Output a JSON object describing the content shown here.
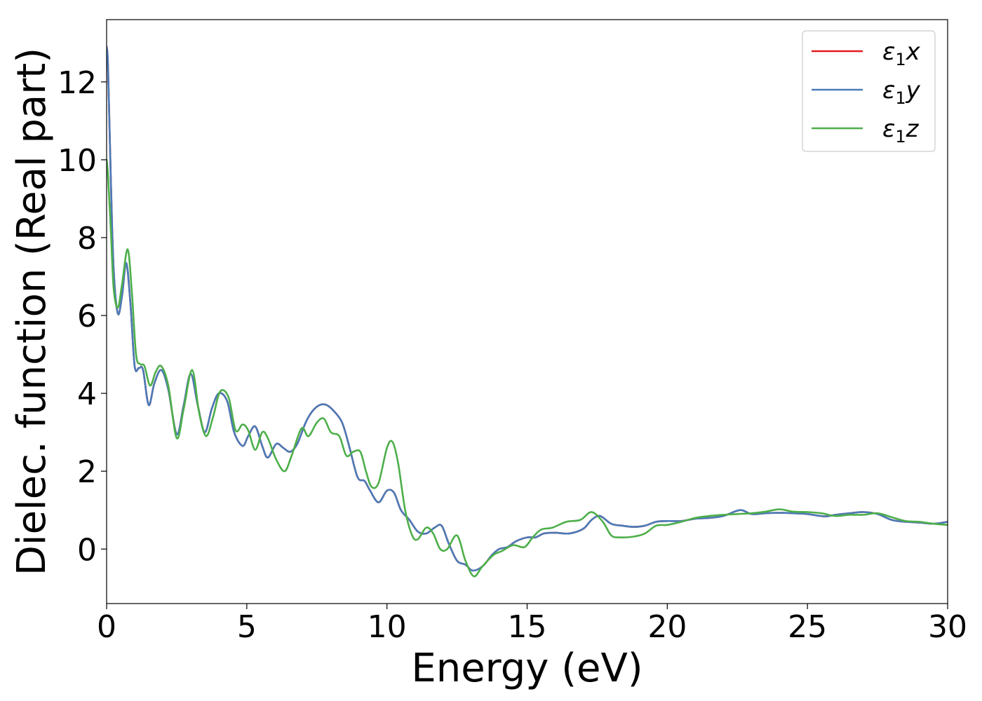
{
  "chart_data": {
    "type": "line",
    "xlabel": "Energy (eV)",
    "ylabel": "Dielec. function (Real part)",
    "xlim": [
      0,
      30
    ],
    "ylim": [
      -1.4,
      13.6
    ],
    "xticks": [
      0,
      5,
      10,
      15,
      20,
      25,
      30
    ],
    "yticks": [
      0,
      2,
      4,
      6,
      8,
      10,
      12
    ],
    "grid": false,
    "legend": "top-right",
    "series": [
      {
        "name": "ε1x",
        "name_base": "ε",
        "name_sub": "1",
        "name_var": "x",
        "color": "#e41a1c",
        "x": [
          0,
          0.05,
          0.15,
          0.25,
          0.4,
          0.55,
          0.7,
          0.85,
          1.0,
          1.15,
          1.3,
          1.5,
          1.7,
          1.95,
          2.2,
          2.5,
          2.75,
          3.0,
          3.25,
          3.5,
          3.75,
          4.0,
          4.3,
          4.55,
          4.85,
          5.05,
          5.3,
          5.55,
          5.75,
          6.05,
          6.3,
          6.55,
          6.8,
          7.1,
          7.35,
          7.6,
          7.85,
          8.1,
          8.4,
          8.65,
          8.95,
          9.2,
          9.4,
          9.7,
          10.0,
          10.25,
          10.5,
          10.8,
          11.1,
          11.4,
          11.7,
          11.95,
          12.2,
          12.5,
          12.8,
          13.05,
          13.4,
          13.75,
          14.0,
          14.3,
          14.6,
          15.0,
          15.3,
          15.6,
          16.0,
          16.5,
          17.0,
          17.3,
          17.6,
          18.0,
          18.4,
          18.8,
          19.2,
          19.6,
          20.0,
          20.5,
          21.0,
          21.5,
          22.0,
          22.6,
          23.0,
          23.5,
          24.0,
          24.5,
          25.0,
          25.6,
          26.0,
          26.5,
          27.0,
          27.5,
          28.0,
          28.5,
          29.0,
          29.5,
          30.0
        ],
        "y": [
          12.9,
          12.4,
          9.5,
          7.2,
          6.05,
          6.5,
          7.35,
          6.3,
          4.7,
          4.65,
          4.6,
          3.7,
          4.25,
          4.6,
          4.1,
          2.95,
          3.7,
          4.5,
          3.7,
          3.0,
          3.6,
          4.0,
          3.8,
          3.0,
          2.65,
          2.9,
          3.15,
          2.65,
          2.35,
          2.7,
          2.6,
          2.5,
          2.7,
          3.25,
          3.55,
          3.7,
          3.7,
          3.55,
          3.25,
          2.65,
          1.85,
          1.75,
          1.5,
          1.2,
          1.5,
          1.45,
          1.0,
          0.75,
          0.45,
          0.4,
          0.55,
          0.6,
          0.15,
          -0.3,
          -0.4,
          -0.55,
          -0.45,
          -0.15,
          0.0,
          0.05,
          0.2,
          0.3,
          0.3,
          0.4,
          0.42,
          0.4,
          0.52,
          0.75,
          0.85,
          0.65,
          0.6,
          0.57,
          0.6,
          0.7,
          0.72,
          0.72,
          0.78,
          0.8,
          0.85,
          1.0,
          0.9,
          0.92,
          0.93,
          0.92,
          0.9,
          0.84,
          0.88,
          0.92,
          0.95,
          0.9,
          0.75,
          0.7,
          0.68,
          0.65,
          0.7
        ]
      },
      {
        "name": "ε1y",
        "name_base": "ε",
        "name_sub": "1",
        "name_var": "y",
        "color": "#4a7bb8",
        "x": [
          0,
          0.05,
          0.15,
          0.25,
          0.4,
          0.55,
          0.7,
          0.85,
          1.0,
          1.15,
          1.3,
          1.5,
          1.7,
          1.95,
          2.2,
          2.5,
          2.75,
          3.0,
          3.25,
          3.5,
          3.75,
          4.0,
          4.3,
          4.55,
          4.85,
          5.05,
          5.3,
          5.55,
          5.75,
          6.05,
          6.3,
          6.55,
          6.8,
          7.1,
          7.35,
          7.6,
          7.85,
          8.1,
          8.4,
          8.65,
          8.95,
          9.2,
          9.4,
          9.7,
          10.0,
          10.25,
          10.5,
          10.8,
          11.1,
          11.4,
          11.7,
          11.95,
          12.2,
          12.5,
          12.8,
          13.05,
          13.4,
          13.75,
          14.0,
          14.3,
          14.6,
          15.0,
          15.3,
          15.6,
          16.0,
          16.5,
          17.0,
          17.3,
          17.6,
          18.0,
          18.4,
          18.8,
          19.2,
          19.6,
          20.0,
          20.5,
          21.0,
          21.5,
          22.0,
          22.6,
          23.0,
          23.5,
          24.0,
          24.5,
          25.0,
          25.6,
          26.0,
          26.5,
          27.0,
          27.5,
          28.0,
          28.5,
          29.0,
          29.5,
          30.0
        ],
        "y": [
          12.9,
          12.4,
          9.5,
          7.2,
          6.05,
          6.5,
          7.35,
          6.3,
          4.7,
          4.65,
          4.6,
          3.7,
          4.25,
          4.6,
          4.1,
          2.95,
          3.7,
          4.5,
          3.7,
          3.0,
          3.6,
          4.0,
          3.8,
          3.0,
          2.65,
          2.9,
          3.15,
          2.65,
          2.35,
          2.7,
          2.6,
          2.5,
          2.7,
          3.25,
          3.55,
          3.7,
          3.7,
          3.55,
          3.25,
          2.65,
          1.85,
          1.75,
          1.5,
          1.2,
          1.5,
          1.45,
          1.0,
          0.75,
          0.45,
          0.4,
          0.55,
          0.6,
          0.15,
          -0.3,
          -0.4,
          -0.55,
          -0.45,
          -0.15,
          0.0,
          0.05,
          0.2,
          0.3,
          0.3,
          0.4,
          0.42,
          0.4,
          0.52,
          0.75,
          0.85,
          0.65,
          0.6,
          0.57,
          0.6,
          0.7,
          0.72,
          0.72,
          0.78,
          0.8,
          0.85,
          1.0,
          0.9,
          0.92,
          0.93,
          0.92,
          0.9,
          0.84,
          0.88,
          0.92,
          0.95,
          0.9,
          0.75,
          0.7,
          0.68,
          0.65,
          0.7
        ]
      },
      {
        "name": "ε1z",
        "name_base": "ε",
        "name_sub": "1",
        "name_var": "z",
        "color": "#4daf4a",
        "x": [
          0,
          0.05,
          0.15,
          0.25,
          0.4,
          0.55,
          0.75,
          0.9,
          1.05,
          1.2,
          1.35,
          1.55,
          1.75,
          1.95,
          2.2,
          2.5,
          2.75,
          3.05,
          3.3,
          3.55,
          3.8,
          4.05,
          4.35,
          4.6,
          4.85,
          5.05,
          5.3,
          5.55,
          5.75,
          6.05,
          6.35,
          6.6,
          6.95,
          7.2,
          7.5,
          7.75,
          8.0,
          8.3,
          8.55,
          8.8,
          9.05,
          9.25,
          9.45,
          9.7,
          10.0,
          10.2,
          10.4,
          10.65,
          10.9,
          11.1,
          11.4,
          11.65,
          11.9,
          12.15,
          12.5,
          12.8,
          13.1,
          13.4,
          13.8,
          14.1,
          14.5,
          14.9,
          15.2,
          15.5,
          15.9,
          16.4,
          16.9,
          17.3,
          17.7,
          18.0,
          18.3,
          18.8,
          19.2,
          19.6,
          20.0,
          20.5,
          21.0,
          21.5,
          22.0,
          22.5,
          23.0,
          23.5,
          24.0,
          24.5,
          25.0,
          25.5,
          26.0,
          26.5,
          27.0,
          27.5,
          28.0,
          28.5,
          29.0,
          29.5,
          30.0
        ],
        "y": [
          10.0,
          9.6,
          8.2,
          6.7,
          6.2,
          6.8,
          7.7,
          6.6,
          5.0,
          4.75,
          4.7,
          4.2,
          4.55,
          4.7,
          4.2,
          2.85,
          3.6,
          4.6,
          3.5,
          2.9,
          3.4,
          4.05,
          3.9,
          3.05,
          3.2,
          3.05,
          2.55,
          3.0,
          2.85,
          2.3,
          2.0,
          2.4,
          3.1,
          2.9,
          3.25,
          3.35,
          3.0,
          2.9,
          2.4,
          2.5,
          2.5,
          2.0,
          1.6,
          1.7,
          2.6,
          2.75,
          2.2,
          1.0,
          0.35,
          0.25,
          0.55,
          0.4,
          0.0,
          0.0,
          0.35,
          -0.3,
          -0.7,
          -0.45,
          -0.15,
          -0.05,
          0.1,
          0.05,
          0.3,
          0.5,
          0.55,
          0.7,
          0.75,
          0.95,
          0.7,
          0.35,
          0.3,
          0.32,
          0.4,
          0.6,
          0.62,
          0.7,
          0.8,
          0.85,
          0.88,
          0.9,
          0.92,
          0.96,
          1.02,
          0.96,
          0.95,
          0.92,
          0.85,
          0.88,
          0.88,
          0.92,
          0.82,
          0.72,
          0.7,
          0.65,
          0.62
        ]
      }
    ]
  }
}
